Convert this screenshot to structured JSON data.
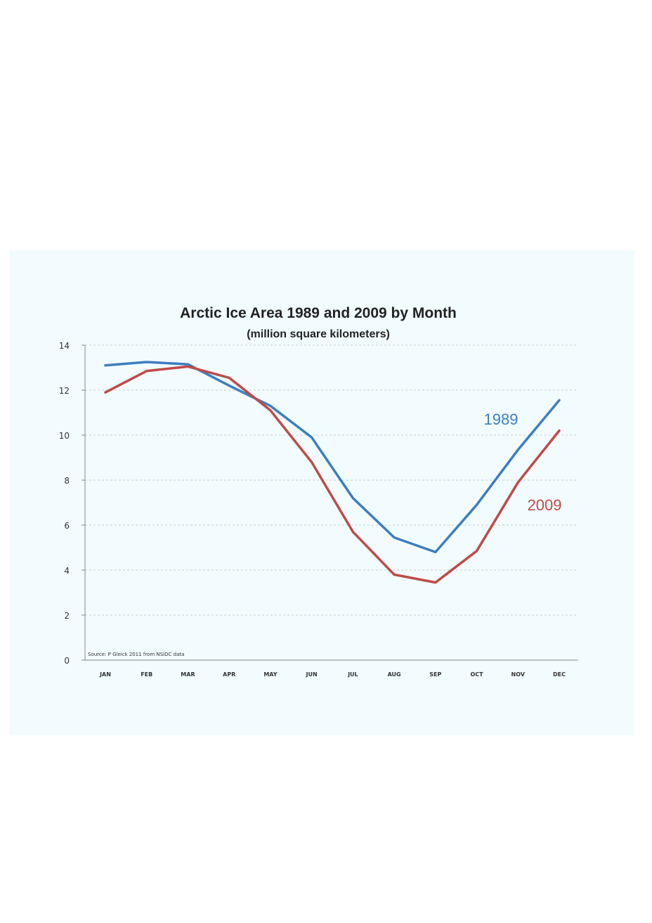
{
  "chart_data": {
    "type": "line",
    "title": "Arctic Ice Area 1989 and 2009 by Month",
    "subtitle": "(million square kilometers)",
    "source_note": "Source: P Gleick 2011 from NSIDC data",
    "categories": [
      "JAN",
      "FEB",
      "MAR",
      "APR",
      "MAY",
      "JUN",
      "JUL",
      "AUG",
      "SEP",
      "OCT",
      "NOV",
      "DEC"
    ],
    "yticks": [
      "0",
      "2",
      "4",
      "6",
      "8",
      "10",
      "12",
      "14"
    ],
    "ylim": [
      0,
      14
    ],
    "grid": "horizontal-dashed",
    "legend": "inline-labels-right",
    "series": [
      {
        "name": "1989",
        "color": "#3d7ebf",
        "values": [
          13.1,
          13.25,
          13.15,
          12.2,
          11.3,
          9.9,
          7.2,
          5.45,
          4.8,
          6.9,
          9.35,
          11.55
        ]
      },
      {
        "name": "2009",
        "color": "#be4b48",
        "values": [
          11.9,
          12.85,
          13.05,
          12.55,
          11.1,
          8.8,
          5.7,
          3.8,
          3.45,
          4.85,
          7.9,
          10.2
        ]
      }
    ]
  }
}
